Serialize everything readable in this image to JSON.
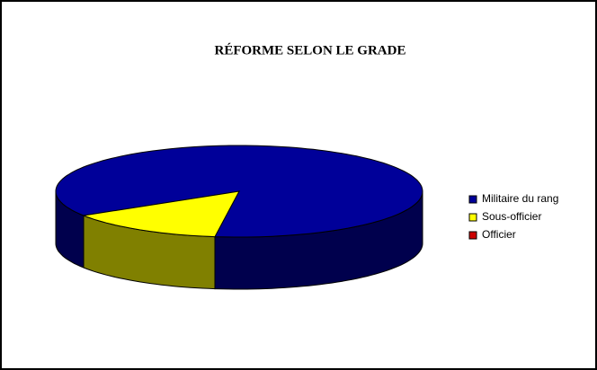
{
  "chart_data": {
    "type": "pie3d",
    "title": "RÉFORME SELON LE GRADE",
    "categories": [
      "Militaire du rang",
      "Sous-officier",
      "Officier"
    ],
    "values": [
      86,
      14,
      0
    ],
    "colors": [
      "#000099",
      "#ffff00",
      "#cc0000"
    ],
    "legend": "right"
  }
}
